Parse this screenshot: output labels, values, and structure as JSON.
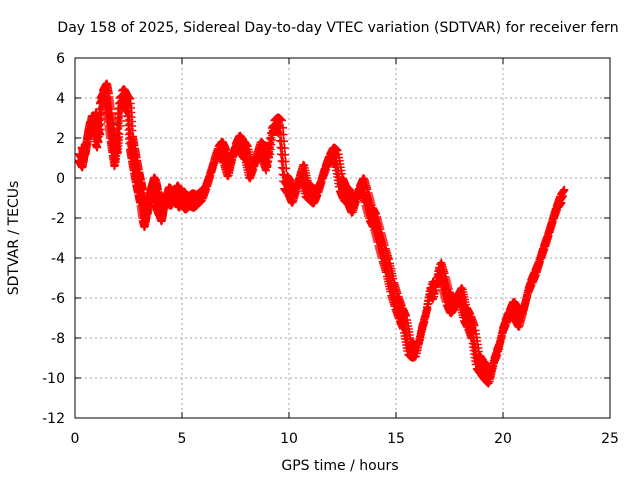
{
  "chart_data": {
    "type": "scatter",
    "title": "Day 158 of 2025, Sidereal Day-to-day VTEC variation (SDTVAR) for receiver fern",
    "xlabel": "GPS time / hours",
    "ylabel": "SDTVAR / TECUs",
    "xlim": [
      0,
      25
    ],
    "ylim": [
      -12,
      6
    ],
    "xticks": [
      0,
      5,
      10,
      15,
      20,
      25
    ],
    "yticks": [
      -12,
      -10,
      -8,
      -6,
      -4,
      -2,
      0,
      2,
      4,
      6
    ],
    "grid": true,
    "marker": "+",
    "series": [
      {
        "name": "SDTVAR",
        "color": "#ff0000",
        "x": [
          0.2,
          0.3,
          0.4,
          0.5,
          0.6,
          0.7,
          0.8,
          0.9,
          1.0,
          1.1,
          1.2,
          1.3,
          1.4,
          1.5,
          1.6,
          1.7,
          1.8,
          1.9,
          2.0,
          2.1,
          2.2,
          2.3,
          2.4,
          2.5,
          2.6,
          2.7,
          2.8,
          2.9,
          3.0,
          3.1,
          3.2,
          3.3,
          3.4,
          3.5,
          3.6,
          3.7,
          3.8,
          3.9,
          4.0,
          4.1,
          4.2,
          4.3,
          4.4,
          4.5,
          4.6,
          4.7,
          4.8,
          4.9,
          5.0,
          5.2,
          5.4,
          5.6,
          5.8,
          6.0,
          6.2,
          6.4,
          6.6,
          6.8,
          7.0,
          7.2,
          7.4,
          7.6,
          7.8,
          8.0,
          8.2,
          8.4,
          8.6,
          8.8,
          9.0,
          9.2,
          9.4,
          9.6,
          9.8,
          10.0,
          10.2,
          10.4,
          10.6,
          10.8,
          11.0,
          11.2,
          11.4,
          11.6,
          11.8,
          12.0,
          12.2,
          12.4,
          12.6,
          12.8,
          13.0,
          13.2,
          13.4,
          13.6,
          13.8,
          14.0,
          14.2,
          14.4,
          14.6,
          14.8,
          15.0,
          15.2,
          15.4,
          15.6,
          15.8,
          16.0,
          16.2,
          16.4,
          16.6,
          16.8,
          17.0,
          17.2,
          17.4,
          17.6,
          17.8,
          18.0,
          18.2,
          18.4,
          18.6,
          18.8,
          19.0,
          19.2,
          19.4,
          19.6,
          19.8,
          20.0,
          20.2,
          20.4,
          20.6,
          20.8,
          21.0,
          21.2,
          21.4,
          21.6,
          21.8,
          22.0,
          22.2,
          22.4,
          22.6,
          22.8
        ],
        "y": [
          1.2,
          1.0,
          0.8,
          1.5,
          2.2,
          2.8,
          2.5,
          3.0,
          2.0,
          1.8,
          4.0,
          4.2,
          4.4,
          3.8,
          3.0,
          2.2,
          1.5,
          0.8,
          2.0,
          4.0,
          4.1,
          3.9,
          3.7,
          3.6,
          1.8,
          1.2,
          0.6,
          0.0,
          -0.5,
          -1.0,
          -1.8,
          -2.2,
          -1.5,
          -0.8,
          -0.3,
          -0.5,
          -1.0,
          -1.4,
          -1.6,
          -1.9,
          -1.2,
          -0.8,
          -0.9,
          -1.1,
          -1.0,
          -0.7,
          -0.9,
          -1.2,
          -1.0,
          -1.3,
          -1.1,
          -1.2,
          -1.0,
          -0.8,
          -0.2,
          0.5,
          1.2,
          1.5,
          1.0,
          0.3,
          1.3,
          1.8,
          1.5,
          1.2,
          0.2,
          0.8,
          1.5,
          1.2,
          0.6,
          2.5,
          2.7,
          2.5,
          -0.2,
          -0.5,
          -1.0,
          -0.3,
          0.4,
          -0.6,
          -0.8,
          -1.0,
          -0.5,
          0.2,
          0.8,
          1.2,
          1.0,
          -0.3,
          -0.8,
          -1.0,
          -1.5,
          -0.8,
          -0.3,
          -1.0,
          -1.8,
          -2.2,
          -3.0,
          -3.8,
          -4.5,
          -5.5,
          -6.2,
          -6.8,
          -7.3,
          -8.5,
          -8.7,
          -8.6,
          -7.5,
          -6.8,
          -5.5,
          -5.8,
          -4.5,
          -5.2,
          -6.0,
          -6.5,
          -6.2,
          -5.8,
          -6.8,
          -7.2,
          -7.8,
          -9.2,
          -9.5,
          -9.8,
          -10.0,
          -9.0,
          -8.5,
          -7.5,
          -7.0,
          -6.5,
          -6.8,
          -7.2,
          -6.4,
          -5.5,
          -5.0,
          -4.5,
          -3.8,
          -3.2,
          -2.5,
          -1.8,
          -1.2,
          -0.9
        ]
      }
    ]
  }
}
